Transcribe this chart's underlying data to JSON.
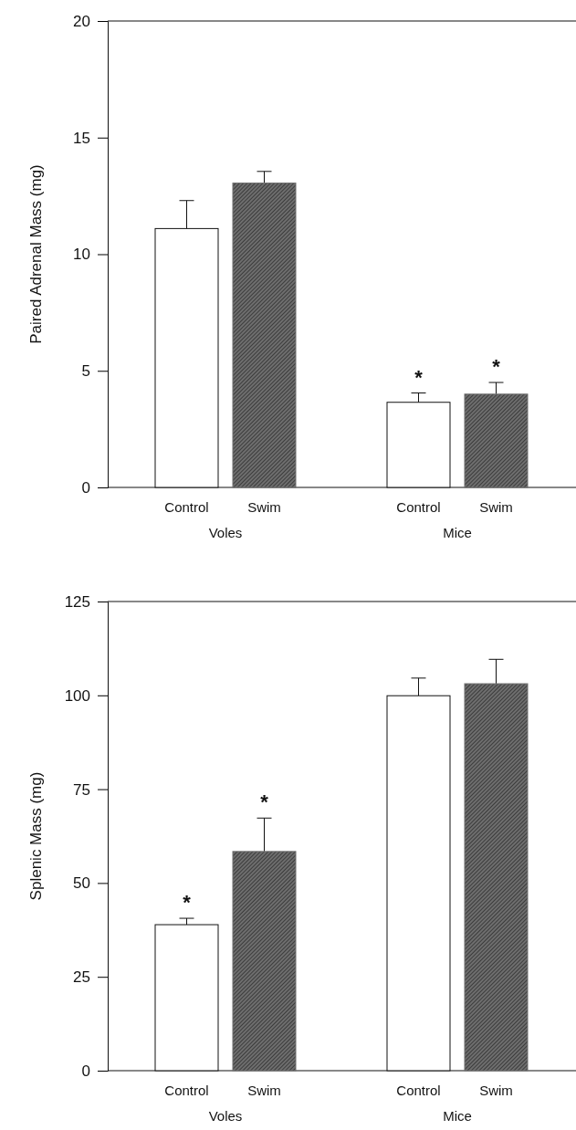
{
  "chart_data": [
    {
      "type": "bar",
      "ylabel": "Paired Adrenal Mass (mg)",
      "categories": [
        "Voles",
        "Mice"
      ],
      "ylim": [
        0,
        20
      ],
      "yticks": [
        0,
        5,
        10,
        15,
        20
      ],
      "series": [
        {
          "name": "Control",
          "color": "#ffffff",
          "values": [
            11.1,
            3.65
          ],
          "errors": [
            1.2,
            0.4
          ],
          "value_labels": [
            null,
            "*"
          ]
        },
        {
          "name": "Swim",
          "color": "#6e6e6e",
          "values": [
            13.05,
            4.0
          ],
          "errors": [
            0.5,
            0.5
          ],
          "value_labels": [
            null,
            "*"
          ]
        }
      ]
    },
    {
      "type": "bar",
      "ylabel": "Splenic Mass (mg)",
      "categories": [
        "Voles",
        "Mice"
      ],
      "ylim": [
        0,
        125
      ],
      "yticks": [
        0,
        25,
        50,
        75,
        100,
        125
      ],
      "series": [
        {
          "name": "Control",
          "color": "#ffffff",
          "values": [
            38.9,
            99.9
          ],
          "errors": [
            1.7,
            4.7
          ],
          "value_labels": [
            "*",
            null
          ]
        },
        {
          "name": "Swim",
          "color": "#6e6e6e",
          "values": [
            58.4,
            103.1
          ],
          "errors": [
            8.9,
            6.5
          ],
          "value_labels": [
            "*",
            null
          ]
        }
      ]
    }
  ]
}
